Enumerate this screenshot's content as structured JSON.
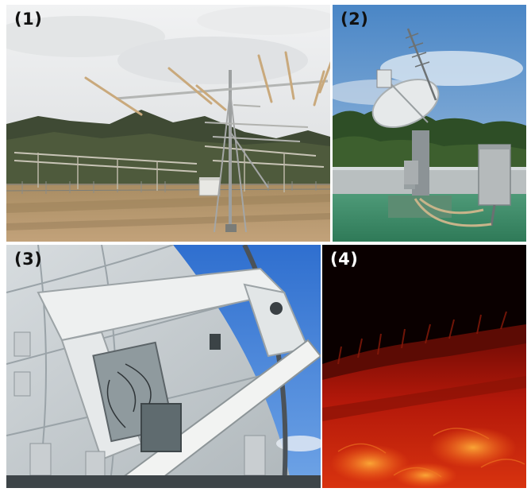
{
  "panels": [
    {
      "label": "(1)"
    },
    {
      "label": "(2)"
    },
    {
      "label": "(3)"
    },
    {
      "label": "(4)"
    }
  ]
}
